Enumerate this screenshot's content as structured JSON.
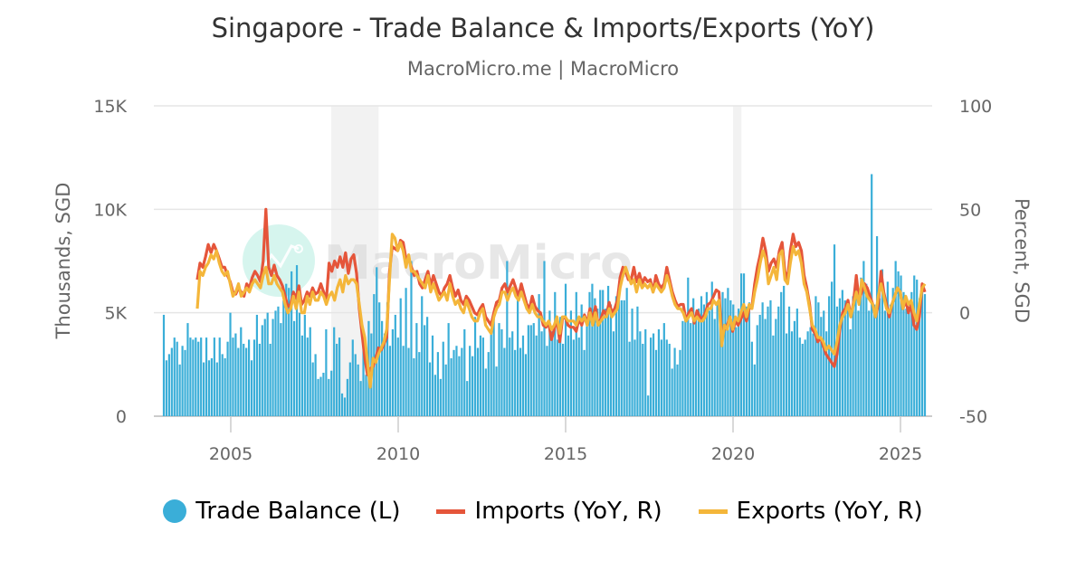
{
  "header": {
    "title": "Singapore - Trade Balance & Imports/Exports (YoY)",
    "subtitle": "MacroMicro.me | MacroMicro"
  },
  "watermark": {
    "text": "MacroMicro"
  },
  "legend": {
    "items": [
      {
        "label": "Trade Balance (L)",
        "color": "#3aaed8",
        "symbol": "circle"
      },
      {
        "label": "Imports (YoY, R)",
        "color": "#e5553a",
        "symbol": "line"
      },
      {
        "label": "Exports (YoY, R)",
        "color": "#f4b63a",
        "symbol": "line"
      }
    ]
  },
  "chart_data": {
    "type": "bar+line",
    "title": "Singapore - Trade Balance & Imports/Exports (YoY)",
    "subtitle": "MacroMicro.me | MacroMicro",
    "x_ticks": [
      "2005",
      "2010",
      "2015",
      "2020",
      "2025"
    ],
    "left_axis": {
      "label": "Thousands, SGD",
      "ticks": [
        "0",
        "5K",
        "10K",
        "15K"
      ],
      "range": [
        0,
        15000
      ]
    },
    "right_axis": {
      "label": "Percent, SGD",
      "ticks": [
        "-50",
        "0",
        "50",
        "100"
      ],
      "range": [
        -50,
        100
      ]
    },
    "grid": true,
    "legend_position": "bottom",
    "recession_bands": [
      {
        "start": "2008-01",
        "end": "2009-06"
      },
      {
        "start": "2020-01",
        "end": "2020-04"
      }
    ],
    "x_start": "2003-01",
    "frequency": "quarterly-sampled (approx., monthly series)",
    "series": [
      {
        "name": "Trade Balance (L)",
        "type": "bar",
        "axis": "left",
        "unit": "Thousands SGD",
        "values": [
          4900,
          2700,
          3000,
          3300,
          3800,
          3600,
          2500,
          3400,
          3200,
          4500,
          3800,
          3700,
          3800,
          3600,
          3800,
          2600,
          3800,
          2700,
          2800,
          3800,
          2600,
          3800,
          3000,
          2800,
          3600,
          5000,
          3800,
          4000,
          3300,
          4300,
          3500,
          3300,
          3700,
          2700,
          3700,
          4900,
          3500,
          4400,
          4700,
          5000,
          3500,
          4700,
          5100,
          5300,
          4500,
          5600,
          6400,
          6200,
          7000,
          4600,
          7300,
          5000,
          3900,
          4900,
          3800,
          4300,
          2600,
          3000,
          1800,
          1900,
          2100,
          4200,
          1800,
          2200,
          4300,
          3500,
          3800,
          1100,
          900,
          1800,
          2600,
          3700,
          3000,
          2500,
          1700,
          3600,
          2000,
          4600,
          4000,
          5900,
          7200,
          5500,
          4600,
          4000,
          5500,
          3400,
          4200,
          4900,
          3800,
          5700,
          3400,
          6200,
          3300,
          7500,
          2800,
          4500,
          3100,
          5800,
          4400,
          4800,
          2600,
          3900,
          2000,
          3100,
          1800,
          3600,
          2500,
          4500,
          2800,
          3200,
          3400,
          2900,
          3300,
          4200,
          1700,
          3400,
          2900,
          4800,
          3300,
          3900,
          3800,
          2300,
          3100,
          4000,
          4700,
          2400,
          4500,
          4200,
          3300,
          7500,
          3800,
          4100,
          3200,
          5800,
          3300,
          3900,
          3000,
          4400,
          4400,
          4500,
          3900,
          5900,
          4100,
          7500,
          3400,
          5100,
          4100,
          6000,
          3700,
          4800,
          3500,
          6400,
          3900,
          5100,
          3700,
          6000,
          3800,
          5400,
          3200,
          4800,
          6000,
          6400,
          5700,
          5200,
          6100,
          6100,
          5200,
          6300,
          5400,
          4100,
          5800,
          5900,
          5600,
          5600,
          6200,
          3600,
          5200,
          3700,
          5300,
          4100,
          3500,
          4200,
          1000,
          3800,
          4000,
          3200,
          4200,
          3700,
          4500,
          3700,
          3500,
          2300,
          3300,
          2500,
          3200,
          4600,
          4800,
          6700,
          4500,
          5700,
          4900,
          5200,
          5800,
          5400,
          6000,
          5100,
          6500,
          4700,
          5500,
          4800,
          6000,
          5700,
          6200,
          5600,
          5400,
          4300,
          5200,
          6900,
          6900,
          5300,
          5500,
          3600,
          2500,
          4400,
          4900,
          5500,
          4700,
          5300,
          5600,
          3900,
          4700,
          5300,
          6000,
          6300,
          4000,
          5300,
          4100,
          4600,
          5200,
          3800,
          3500,
          3700,
          4100,
          4300,
          4000,
          5800,
          5500,
          4800,
          5100,
          4100,
          5800,
          6500,
          8300,
          5300,
          5700,
          6100,
          5600,
          5300,
          4200,
          5800,
          6500,
          5100,
          6700,
          7500,
          6400,
          5100,
          11700,
          5400,
          8700,
          5700,
          7100,
          5100,
          6500,
          5400,
          6200,
          7500,
          7000,
          6800,
          6000,
          5200,
          5300,
          6000,
          6800,
          6600,
          5700,
          6200,
          5900
        ],
        "color": "#3aaed8"
      },
      {
        "name": "Imports (YoY, R)",
        "type": "line",
        "axis": "right",
        "unit": "%",
        "start": "2004-01",
        "values": [
          16,
          24,
          22,
          27,
          33,
          29,
          33,
          30,
          26,
          22,
          22,
          18,
          15,
          10,
          9,
          12,
          10,
          8,
          14,
          12,
          17,
          20,
          18,
          15,
          25,
          50,
          22,
          18,
          23,
          18,
          16,
          13,
          8,
          3,
          4,
          10,
          7,
          13,
          4,
          6,
          10,
          8,
          12,
          9,
          10,
          14,
          10,
          6,
          24,
          20,
          25,
          22,
          27,
          22,
          29,
          19,
          26,
          28,
          19,
          2,
          -10,
          -22,
          -30,
          -27,
          -26,
          -22,
          -17,
          -18,
          -15,
          -12,
          20,
          32,
          31,
          30,
          35,
          34,
          26,
          26,
          22,
          18,
          20,
          14,
          12,
          16,
          20,
          13,
          18,
          14,
          10,
          8,
          12,
          14,
          18,
          12,
          8,
          11,
          6,
          4,
          8,
          6,
          3,
          0,
          -1,
          2,
          4,
          -2,
          -4,
          -6,
          0,
          5,
          6,
          12,
          14,
          10,
          13,
          16,
          12,
          8,
          14,
          9,
          4,
          2,
          8,
          3,
          1,
          0,
          -6,
          -7,
          -5,
          -13,
          -8,
          -3,
          -14,
          -3,
          -2,
          -6,
          -7,
          -7,
          -9,
          -3,
          -6,
          -1,
          -5,
          2,
          -4,
          3,
          -6,
          -3,
          1,
          -1,
          5,
          0,
          2,
          6,
          17,
          22,
          20,
          16,
          16,
          22,
          15,
          19,
          14,
          17,
          15,
          16,
          10,
          18,
          14,
          12,
          14,
          22,
          16,
          10,
          6,
          3,
          4,
          4,
          -4,
          0,
          2,
          -5,
          1,
          -2,
          -3,
          0,
          4,
          5,
          8,
          11,
          10,
          -12,
          -8,
          -6,
          -2,
          -9,
          -4,
          -6,
          -3,
          0,
          -4,
          2,
          3,
          14,
          22,
          28,
          36,
          30,
          20,
          24,
          26,
          22,
          30,
          34,
          20,
          16,
          30,
          38,
          32,
          34,
          30,
          18,
          12,
          4,
          -8,
          -10,
          -14,
          -12,
          -16,
          -20,
          -22,
          -24,
          -26,
          -20,
          -8,
          0,
          2,
          6,
          -2,
          5,
          18,
          6,
          10,
          14,
          12,
          8,
          4,
          -2,
          4,
          20,
          10,
          4,
          -2,
          4,
          8,
          12,
          10,
          2,
          6,
          0,
          4,
          -6,
          -8,
          -2,
          14,
          10
        ],
        "color": "#e5553a"
      },
      {
        "name": "Exports (YoY, R)",
        "type": "line",
        "axis": "right",
        "unit": "%",
        "start": "2004-01",
        "values": [
          2,
          20,
          18,
          22,
          24,
          28,
          26,
          30,
          24,
          20,
          18,
          20,
          14,
          8,
          10,
          14,
          8,
          10,
          12,
          10,
          14,
          16,
          14,
          12,
          18,
          22,
          14,
          14,
          18,
          14,
          12,
          10,
          4,
          0,
          2,
          8,
          2,
          10,
          0,
          0,
          8,
          4,
          10,
          6,
          6,
          10,
          8,
          4,
          8,
          10,
          6,
          12,
          16,
          10,
          18,
          14,
          16,
          16,
          14,
          4,
          -6,
          -12,
          -24,
          -36,
          -22,
          -24,
          -20,
          -17,
          -14,
          -8,
          16,
          38,
          36,
          30,
          34,
          30,
          22,
          28,
          20,
          20,
          18,
          16,
          14,
          12,
          18,
          10,
          14,
          10,
          6,
          8,
          10,
          6,
          14,
          8,
          4,
          6,
          2,
          0,
          6,
          2,
          -2,
          -4,
          -4,
          0,
          2,
          -6,
          -8,
          -10,
          -2,
          2,
          4,
          10,
          10,
          6,
          10,
          12,
          8,
          6,
          10,
          6,
          2,
          0,
          4,
          0,
          -2,
          -2,
          -4,
          -6,
          -4,
          -8,
          -6,
          -2,
          -10,
          -2,
          -2,
          -4,
          -4,
          -4,
          -6,
          -2,
          -4,
          -2,
          -6,
          0,
          -6,
          0,
          -6,
          -4,
          -2,
          -2,
          2,
          -2,
          0,
          2,
          12,
          18,
          22,
          18,
          14,
          16,
          10,
          16,
          12,
          14,
          12,
          14,
          10,
          14,
          12,
          10,
          12,
          18,
          14,
          8,
          4,
          2,
          2,
          0,
          -4,
          -2,
          0,
          -4,
          -2,
          -4,
          -4,
          -2,
          2,
          2,
          6,
          4,
          6,
          -16,
          -6,
          -8,
          -2,
          -8,
          -2,
          -4,
          0,
          4,
          -2,
          4,
          2,
          10,
          16,
          24,
          30,
          26,
          14,
          18,
          22,
          16,
          28,
          30,
          16,
          14,
          24,
          32,
          28,
          30,
          24,
          14,
          10,
          2,
          -6,
          -8,
          -12,
          -12,
          -14,
          -18,
          -16,
          -18,
          -20,
          -14,
          -6,
          -2,
          0,
          4,
          -2,
          4,
          10,
          4,
          16,
          12,
          8,
          6,
          4,
          -2,
          8,
          14,
          8,
          2,
          0,
          4,
          8,
          12,
          10,
          2,
          8,
          4,
          6,
          0,
          -4,
          4,
          12,
          14
        ],
        "color": "#f4b63a"
      }
    ]
  }
}
